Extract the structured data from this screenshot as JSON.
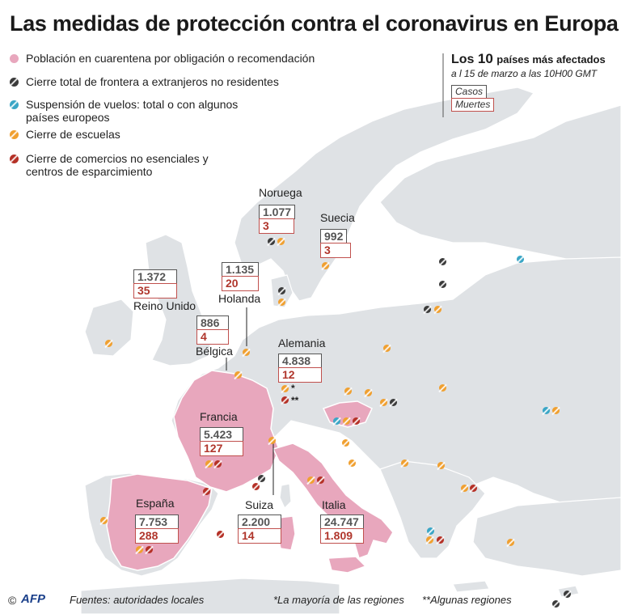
{
  "title": "Las medidas de protección contra el coronavirus en Europa",
  "legend": [
    {
      "label": "Población en cuarentena por obligación o recomendación",
      "color": "#e8a7bd",
      "marker": "circle"
    },
    {
      "label": "Cierre total de frontera a extranjeros no residentes",
      "color": "#3b3b3b",
      "marker": "slashed-circle"
    },
    {
      "label": "Suspensión de vuelos: total o con algunos países europeos",
      "color": "#3aa6c6",
      "marker": "slashed-circle"
    },
    {
      "label": "Cierre de escuelas",
      "color": "#f0a030",
      "marker": "slashed-circle"
    },
    {
      "label": "Cierre de comercios no esenciales y centros de esparcimiento",
      "color": "#b53127",
      "marker": "slashed-circle"
    }
  ],
  "info": {
    "title_pre": "Los",
    "title_num": "10",
    "title_post": "países más afectados",
    "subtitle": "a l 15 de marzo a las 10H00 GMT",
    "key_cases": "Casos",
    "key_deaths": "Muertes"
  },
  "countries": [
    {
      "name": "Noruega",
      "cases": "1.077",
      "deaths": "3"
    },
    {
      "name": "Suecia",
      "cases": "992",
      "deaths": "3"
    },
    {
      "name": "Reino Unido",
      "cases": "1.372",
      "deaths": "35"
    },
    {
      "name": "Holanda",
      "cases": "1.135",
      "deaths": "20"
    },
    {
      "name": "Bélgica",
      "cases": "886",
      "deaths": "4"
    },
    {
      "name": "Alemania",
      "cases": "4.838",
      "deaths": "12"
    },
    {
      "name": "Francia",
      "cases": "5.423",
      "deaths": "127"
    },
    {
      "name": "España",
      "cases": "7.753",
      "deaths": "288"
    },
    {
      "name": "Suiza",
      "cases": "2.200",
      "deaths": "14"
    },
    {
      "name": "Italia",
      "cases": "24.747",
      "deaths": "1.809"
    }
  ],
  "notes": {
    "star1": "*",
    "star2": "**",
    "note1": "*La mayoría de las regiones",
    "note2": "**Algunas regiones"
  },
  "footer": {
    "copyright": "©",
    "agency": "AFP",
    "sources": "Fuentes: autoridades locales"
  },
  "colors": {
    "sea": "#ffffff",
    "land": "#dfe2e5",
    "quarantine": "#e8a7bd",
    "border_line": "#ffffff",
    "cases_text": "#555555",
    "deaths_text": "#b0362c"
  }
}
